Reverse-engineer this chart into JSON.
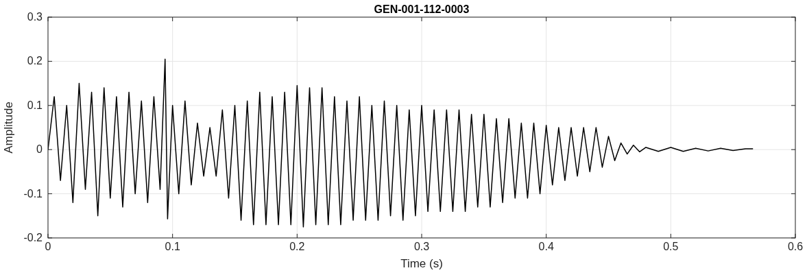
{
  "chart_data": {
    "type": "line",
    "title": "GEN-001-112-0003",
    "xlabel": "Time (s)",
    "ylabel": "Amplitude",
    "x": [
      0.0,
      0.005,
      0.01,
      0.015,
      0.02,
      0.025,
      0.03,
      0.035,
      0.04,
      0.045,
      0.05,
      0.055,
      0.06,
      0.065,
      0.07,
      0.075,
      0.08,
      0.085,
      0.09,
      0.094,
      0.096,
      0.1,
      0.105,
      0.11,
      0.115,
      0.12,
      0.125,
      0.13,
      0.135,
      0.14,
      0.145,
      0.15,
      0.155,
      0.16,
      0.165,
      0.17,
      0.175,
      0.18,
      0.185,
      0.19,
      0.195,
      0.2,
      0.205,
      0.21,
      0.215,
      0.22,
      0.225,
      0.23,
      0.235,
      0.24,
      0.245,
      0.25,
      0.255,
      0.26,
      0.265,
      0.27,
      0.275,
      0.28,
      0.285,
      0.29,
      0.295,
      0.3,
      0.305,
      0.31,
      0.315,
      0.32,
      0.325,
      0.33,
      0.335,
      0.34,
      0.345,
      0.35,
      0.355,
      0.36,
      0.365,
      0.37,
      0.375,
      0.38,
      0.385,
      0.39,
      0.395,
      0.4,
      0.405,
      0.41,
      0.415,
      0.42,
      0.425,
      0.43,
      0.435,
      0.44,
      0.445,
      0.45,
      0.455,
      0.46,
      0.465,
      0.47,
      0.475,
      0.48,
      0.49,
      0.5,
      0.51,
      0.52,
      0.53,
      0.54,
      0.55,
      0.56,
      0.566
    ],
    "series": [
      {
        "color": "#000000",
        "values": [
          0.0,
          0.12,
          -0.07,
          0.1,
          -0.12,
          0.15,
          -0.09,
          0.13,
          -0.15,
          0.14,
          -0.11,
          0.12,
          -0.13,
          0.13,
          -0.1,
          0.11,
          -0.12,
          0.12,
          -0.09,
          0.205,
          -0.157,
          0.1,
          -0.1,
          0.11,
          -0.08,
          0.06,
          -0.06,
          0.05,
          -0.06,
          0.09,
          -0.11,
          0.1,
          -0.16,
          0.11,
          -0.17,
          0.13,
          -0.17,
          0.12,
          -0.17,
          0.13,
          -0.17,
          0.145,
          -0.175,
          0.14,
          -0.17,
          0.14,
          -0.17,
          0.12,
          -0.17,
          0.11,
          -0.16,
          0.12,
          -0.16,
          0.1,
          -0.16,
          0.11,
          -0.15,
          0.1,
          -0.16,
          0.09,
          -0.15,
          0.1,
          -0.14,
          0.09,
          -0.14,
          0.09,
          -0.14,
          0.09,
          -0.14,
          0.08,
          -0.13,
          0.08,
          -0.13,
          0.07,
          -0.12,
          0.07,
          -0.11,
          0.06,
          -0.11,
          0.06,
          -0.1,
          0.055,
          -0.08,
          0.05,
          -0.07,
          0.05,
          -0.06,
          0.05,
          -0.05,
          0.05,
          -0.04,
          0.03,
          -0.025,
          0.015,
          -0.01,
          0.01,
          -0.005,
          0.005,
          -0.004,
          0.005,
          -0.004,
          0.003,
          -0.003,
          0.003,
          -0.002,
          0.002,
          0.002
        ]
      }
    ],
    "xlim": [
      0,
      0.6
    ],
    "xticks": [
      0,
      0.1,
      0.2,
      0.3,
      0.4,
      0.5,
      0.6
    ],
    "ylim": [
      -0.2,
      0.3
    ],
    "yticks": [
      -0.2,
      -0.1,
      0,
      0.1,
      0.2,
      0.3
    ],
    "grid": true,
    "marker": "none",
    "line_style": "solid"
  }
}
